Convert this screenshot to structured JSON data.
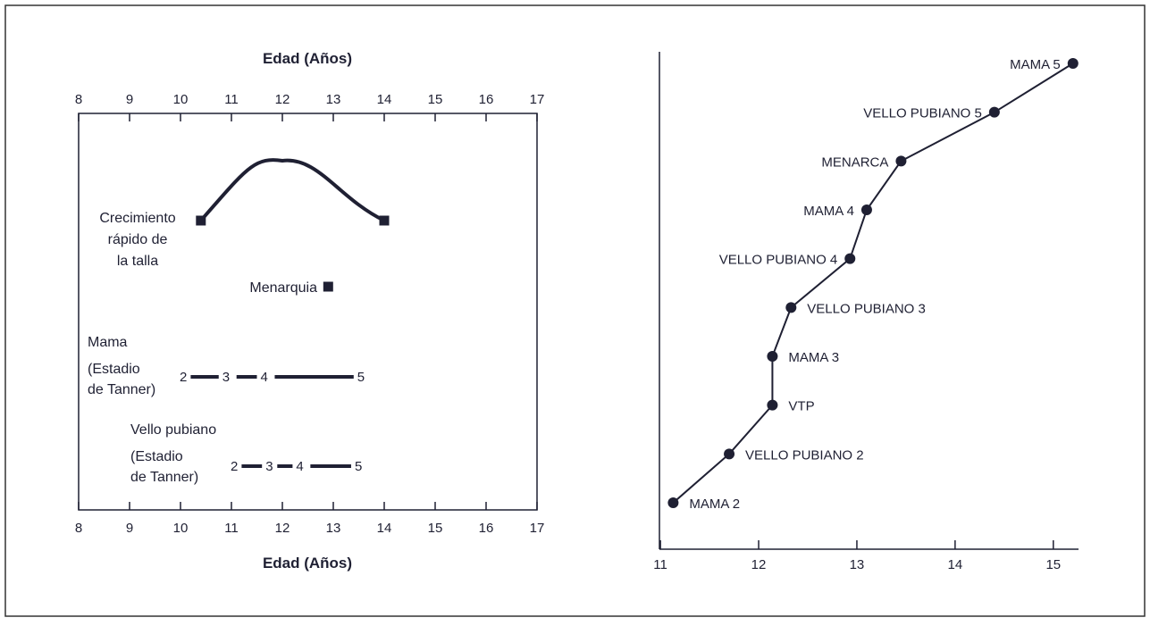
{
  "chart_data": [
    {
      "type": "timeline",
      "xlabel": "Edad (Años)",
      "xticks": [
        "8",
        "9",
        "10",
        "11",
        "12",
        "13",
        "14",
        "15",
        "16",
        "17"
      ],
      "xlim": [
        8,
        17
      ],
      "growth": {
        "label_lines": [
          "Crecimiento",
          "rápido de",
          "la talla"
        ],
        "start": 10.4,
        "peak": 12.0,
        "end": 14.0
      },
      "menarche": {
        "label": "Menarquia",
        "age": 12.9
      },
      "breast": {
        "title": "Mama",
        "subtitle_lines": [
          "(Estadio",
          "de Tanner)"
        ],
        "stages": [
          {
            "from": "2",
            "to": "3",
            "start": 10.2,
            "end": 10.75
          },
          {
            "from": "3",
            "to": "4",
            "start": 11.1,
            "end": 11.5
          },
          {
            "from": "4",
            "to": "5",
            "start": 11.85,
            "end": 13.4
          }
        ]
      },
      "pubic_hair": {
        "title": "Vello pubiano",
        "subtitle_lines": [
          "(Estadio",
          "de Tanner)"
        ],
        "stages": [
          {
            "from": "2",
            "to": "3",
            "start": 11.2,
            "end": 11.6
          },
          {
            "from": "3",
            "to": "4",
            "start": 11.9,
            "end": 12.2
          },
          {
            "from": "4",
            "to": "5",
            "start": 12.55,
            "end": 13.35
          }
        ]
      }
    },
    {
      "type": "line",
      "xticks": [
        "11",
        "12",
        "13",
        "14",
        "15"
      ],
      "xlim": [
        11,
        15.25
      ],
      "yticks": [],
      "series": [
        {
          "points": [
            {
              "label": "MAMA 2",
              "x": 11.13,
              "y": 1
            },
            {
              "label": "VELLO PUBIANO 2",
              "x": 11.7,
              "y": 2
            },
            {
              "label": "VTP",
              "x": 12.14,
              "y": 3
            },
            {
              "label": "MAMA 3",
              "x": 12.14,
              "y": 4
            },
            {
              "label": "VELLO PUBIANO 3",
              "x": 12.33,
              "y": 5
            },
            {
              "label": "VELLO PUBIANO 4",
              "x": 12.93,
              "y": 6
            },
            {
              "label": "MAMA 4",
              "x": 13.1,
              "y": 7
            },
            {
              "label": "MENARCA",
              "x": 13.45,
              "y": 8
            },
            {
              "label": "VELLO PUBIANO 5",
              "x": 14.4,
              "y": 9
            },
            {
              "label": "MAMA 5",
              "x": 15.2,
              "y": 10
            }
          ]
        }
      ]
    }
  ],
  "colors": {
    "ink": "#1f2033",
    "border": "#333333"
  }
}
